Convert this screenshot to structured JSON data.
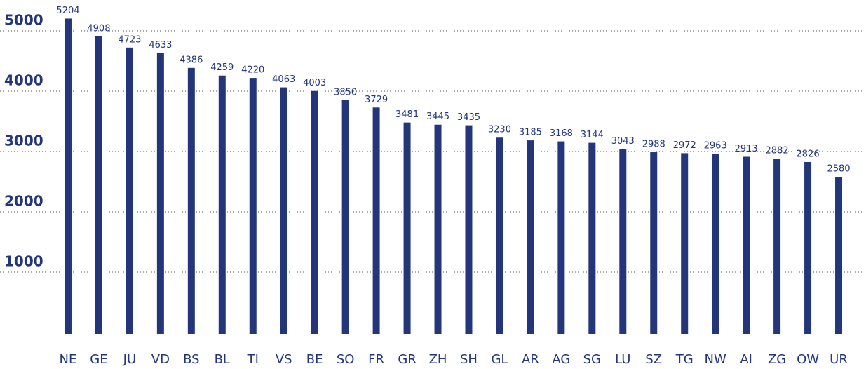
{
  "chart_data": {
    "type": "bar",
    "categories": [
      "NE",
      "GE",
      "JU",
      "VD",
      "BS",
      "BL",
      "TI",
      "VS",
      "BE",
      "SO",
      "FR",
      "GR",
      "ZH",
      "SH",
      "GL",
      "AR",
      "AG",
      "SG",
      "LU",
      "SZ",
      "TG",
      "NW",
      "AI",
      "ZG",
      "OW",
      "UR"
    ],
    "values": [
      5204,
      4908,
      4723,
      4633,
      4386,
      4259,
      4220,
      4063,
      4003,
      3850,
      3729,
      3481,
      3445,
      3435,
      3230,
      3185,
      3168,
      3144,
      3043,
      2988,
      2972,
      2963,
      2913,
      2882,
      2826,
      2580
    ],
    "color": "#23367a",
    "ylim": [
      0,
      5500
    ],
    "yticks": [
      1000,
      2000,
      3000,
      4000,
      5000
    ],
    "grid": true
  }
}
